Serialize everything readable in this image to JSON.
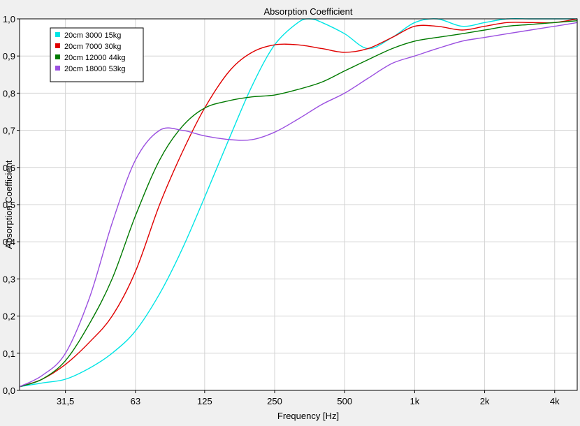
{
  "chart_data": {
    "type": "line",
    "title": "Absorption Coefficient",
    "xlabel": "Frequency [Hz]",
    "ylabel": "Absorption Coefficient",
    "x_scale": "log",
    "xlim": [
      20,
      5000
    ],
    "ylim": [
      0,
      1
    ],
    "grid": true,
    "legend_position": "top-left",
    "x_ticks": [
      {
        "value": 31.5,
        "label": "31,5"
      },
      {
        "value": 63,
        "label": "63"
      },
      {
        "value": 125,
        "label": "125"
      },
      {
        "value": 250,
        "label": "250"
      },
      {
        "value": 500,
        "label": "500"
      },
      {
        "value": 1000,
        "label": "1k"
      },
      {
        "value": 2000,
        "label": "2k"
      },
      {
        "value": 4000,
        "label": "4k"
      }
    ],
    "y_ticks": [
      {
        "value": 0.0,
        "label": "0,0"
      },
      {
        "value": 0.1,
        "label": "0,1"
      },
      {
        "value": 0.2,
        "label": "0,2"
      },
      {
        "value": 0.3,
        "label": "0,3"
      },
      {
        "value": 0.4,
        "label": "0,4"
      },
      {
        "value": 0.5,
        "label": "0,5"
      },
      {
        "value": 0.6,
        "label": "0,6"
      },
      {
        "value": 0.7,
        "label": "0,7"
      },
      {
        "value": 0.8,
        "label": "0,8"
      },
      {
        "value": 0.9,
        "label": "0,9"
      },
      {
        "value": 1.0,
        "label": "1,0"
      }
    ],
    "series": [
      {
        "name": "20cm 3000 15kg",
        "color": "#00e5e5",
        "x": [
          20,
          25,
          31.5,
          40,
          50,
          63,
          80,
          100,
          125,
          160,
          200,
          250,
          315,
          355,
          400,
          500,
          630,
          800,
          1000,
          1250,
          1600,
          2000,
          2500,
          3150,
          4000,
          5000
        ],
        "y": [
          0.01,
          0.02,
          0.03,
          0.06,
          0.1,
          0.16,
          0.26,
          0.38,
          0.52,
          0.68,
          0.82,
          0.93,
          0.99,
          1.0,
          0.99,
          0.96,
          0.92,
          0.95,
          0.99,
          1.0,
          0.98,
          0.99,
          1.0,
          1.0,
          1.0,
          1.0
        ]
      },
      {
        "name": "20cm 7000 30kg",
        "color": "#e00000",
        "x": [
          20,
          25,
          31.5,
          40,
          50,
          63,
          80,
          100,
          125,
          160,
          200,
          250,
          315,
          400,
          500,
          630,
          800,
          1000,
          1250,
          1600,
          2000,
          2500,
          3150,
          4000,
          5000
        ],
        "y": [
          0.01,
          0.03,
          0.07,
          0.13,
          0.2,
          0.32,
          0.5,
          0.64,
          0.76,
          0.86,
          0.91,
          0.93,
          0.93,
          0.92,
          0.91,
          0.92,
          0.95,
          0.98,
          0.98,
          0.97,
          0.98,
          0.99,
          0.99,
          0.99,
          1.0
        ]
      },
      {
        "name": "20cm 12000 44kg",
        "color": "#007a00",
        "x": [
          20,
          25,
          31.5,
          40,
          50,
          63,
          80,
          100,
          125,
          160,
          200,
          250,
          315,
          400,
          500,
          630,
          800,
          1000,
          1250,
          1600,
          2000,
          2500,
          3150,
          4000,
          5000
        ],
        "y": [
          0.01,
          0.03,
          0.08,
          0.18,
          0.3,
          0.47,
          0.62,
          0.71,
          0.76,
          0.78,
          0.79,
          0.795,
          0.81,
          0.83,
          0.86,
          0.89,
          0.92,
          0.94,
          0.95,
          0.96,
          0.97,
          0.98,
          0.985,
          0.99,
          0.995
        ]
      },
      {
        "name": "20cm 18000 53kg",
        "color": "#9b50e0",
        "x": [
          20,
          25,
          31.5,
          40,
          50,
          63,
          80,
          100,
          125,
          160,
          200,
          250,
          315,
          400,
          500,
          630,
          800,
          1000,
          1250,
          1600,
          2000,
          2500,
          3150,
          4000,
          5000
        ],
        "y": [
          0.01,
          0.04,
          0.1,
          0.25,
          0.45,
          0.62,
          0.7,
          0.7,
          0.685,
          0.675,
          0.675,
          0.695,
          0.73,
          0.77,
          0.8,
          0.84,
          0.88,
          0.9,
          0.92,
          0.94,
          0.95,
          0.96,
          0.97,
          0.98,
          0.99
        ]
      }
    ]
  }
}
